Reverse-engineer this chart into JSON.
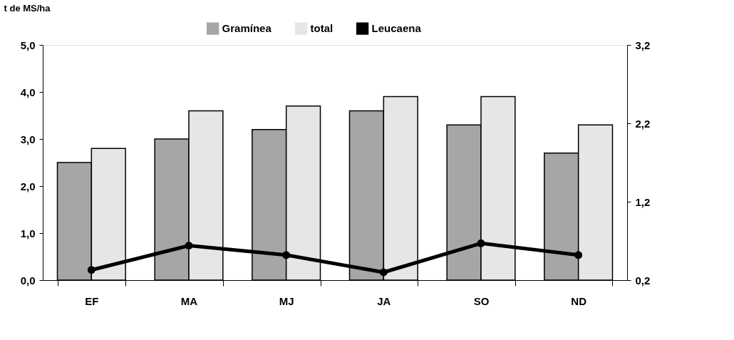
{
  "chart_data": {
    "type": "bar",
    "ylabel": "t de MS/ha",
    "categories": [
      "EF",
      "MA",
      "MJ",
      "JA",
      "SO",
      "ND"
    ],
    "series": [
      {
        "name": "Gramínea",
        "color": "#a6a6a6",
        "values": [
          2.5,
          3.0,
          3.2,
          3.6,
          3.3,
          2.7
        ]
      },
      {
        "name": "total",
        "color": "#e6e6e6",
        "values": [
          2.8,
          3.6,
          3.7,
          3.9,
          3.9,
          3.3
        ]
      },
      {
        "name": "Leucaena",
        "type": "line",
        "axis": "y2",
        "color": "#000000",
        "marker": "circle",
        "values": [
          0.33,
          0.64,
          0.52,
          0.3,
          0.67,
          0.52
        ]
      }
    ],
    "ylim": [
      0,
      5
    ],
    "yticks": [
      {
        "value": 0,
        "label": "0,0"
      },
      {
        "value": 1,
        "label": "1,0"
      },
      {
        "value": 2,
        "label": "2,0"
      },
      {
        "value": 3,
        "label": "3,0"
      },
      {
        "value": 4,
        "label": "4,0"
      },
      {
        "value": 5,
        "label": "5,0"
      }
    ],
    "y2lim": [
      0.2,
      3.2
    ],
    "y2ticks": [
      {
        "value": 0.2,
        "label": "0,2"
      },
      {
        "value": 1.2,
        "label": "1,2"
      },
      {
        "value": 2.2,
        "label": "2,2"
      },
      {
        "value": 3.2,
        "label": "3,2"
      }
    ],
    "grid": false,
    "legend": "top"
  }
}
